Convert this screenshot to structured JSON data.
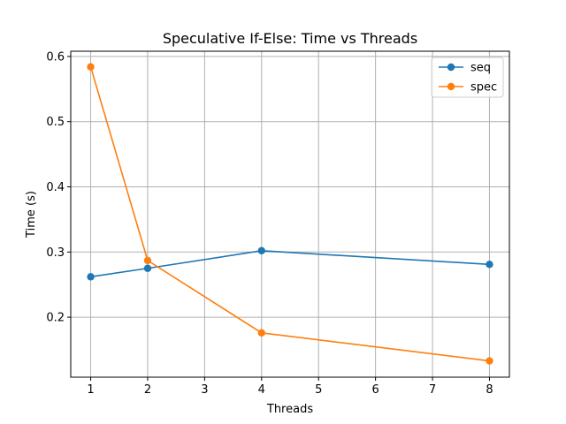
{
  "chart_data": {
    "type": "line",
    "title": "Speculative If-Else: Time vs Threads",
    "xlabel": "Threads",
    "ylabel": "Time (s)",
    "xlim": [
      0.65,
      8.35
    ],
    "ylim": [
      0.108,
      0.608
    ],
    "xticks": [
      1,
      2,
      3,
      4,
      5,
      6,
      7,
      8
    ],
    "yticks": [
      0.2,
      0.3,
      0.4,
      0.5,
      0.6
    ],
    "grid": true,
    "legend_position": "top-right",
    "series": [
      {
        "name": "seq",
        "color": "#1f77b4",
        "x": [
          1,
          2,
          4,
          8
        ],
        "y": [
          0.262,
          0.275,
          0.302,
          0.281
        ]
      },
      {
        "name": "spec",
        "color": "#ff7f0e",
        "x": [
          1,
          2,
          4,
          8
        ],
        "y": [
          0.584,
          0.287,
          0.176,
          0.133
        ]
      }
    ]
  }
}
